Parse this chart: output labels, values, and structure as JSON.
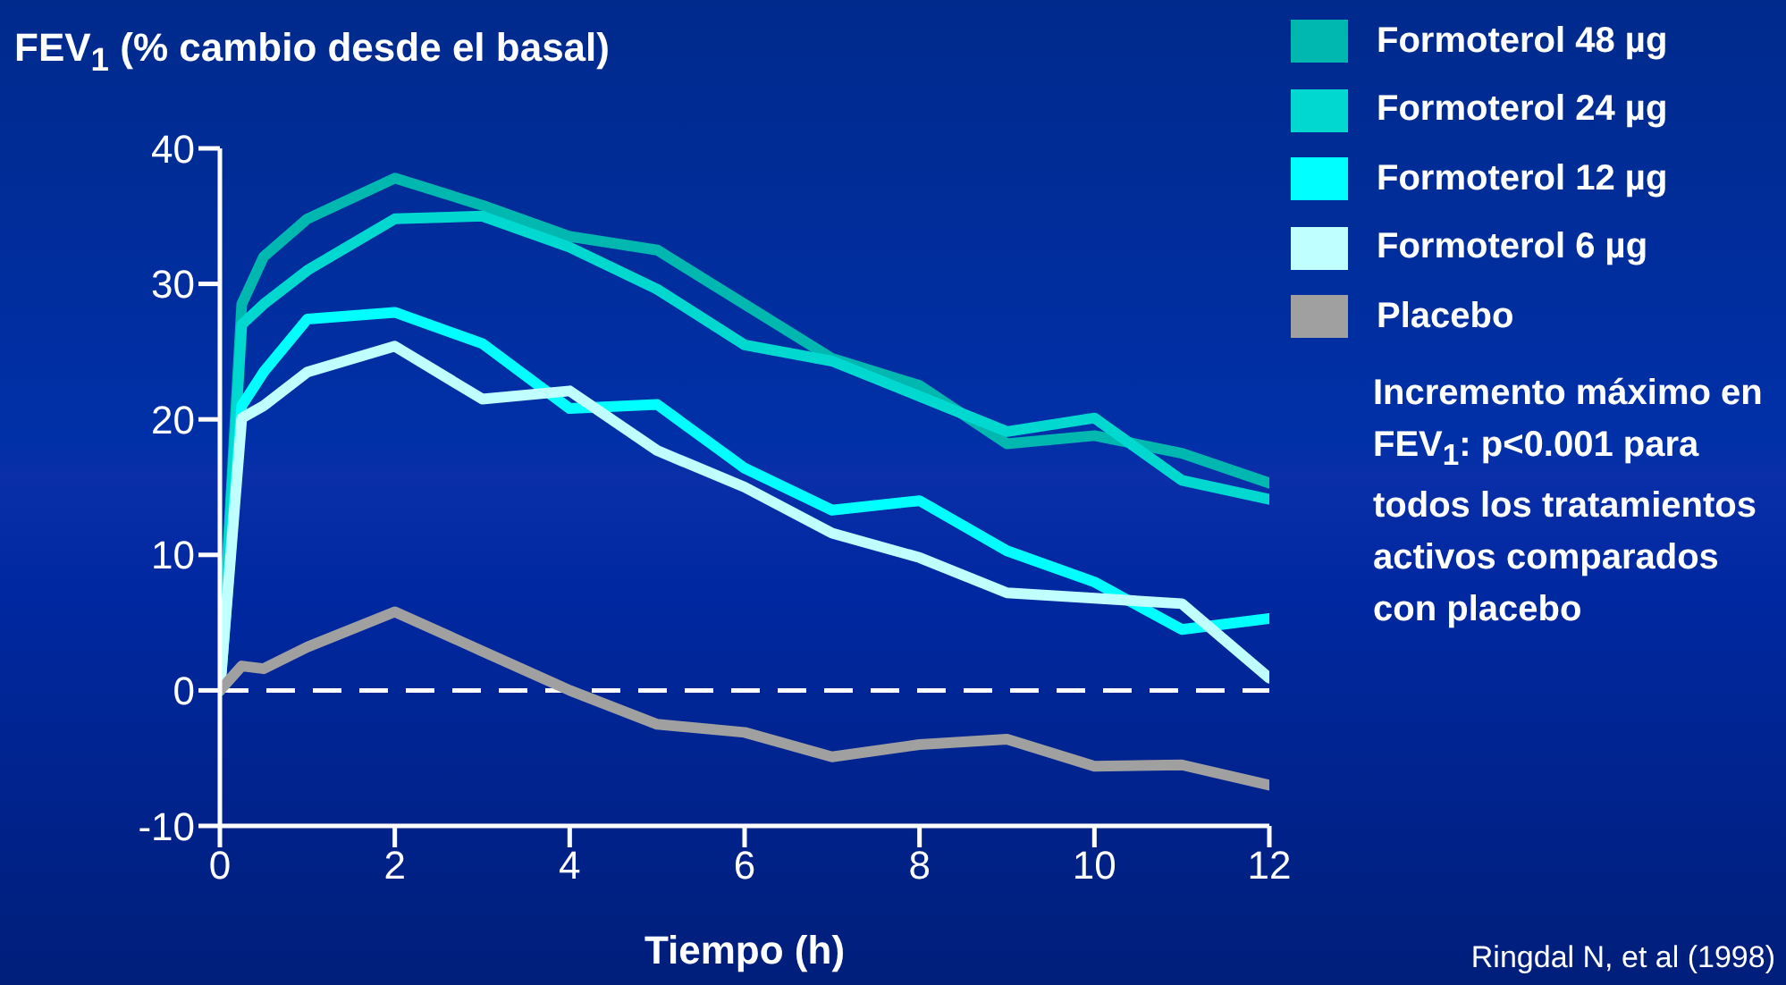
{
  "chart_data": {
    "type": "line",
    "ylabel": "FEV$_{1}$ (% cambio desde el basal)",
    "xlabel": "Tiempo (h)",
    "x": [
      0,
      0.25,
      0.5,
      1,
      2,
      3,
      4,
      5,
      6,
      7,
      8,
      9,
      10,
      11,
      12
    ],
    "series": [
      {
        "name": "Formoterol 48 µg",
        "color": "#00b8b0",
        "values": [
          0,
          28.5,
          32,
          34.8,
          37.8,
          35.8,
          33.5,
          32.5,
          28.5,
          24.5,
          22.5,
          18.2,
          18.8,
          17.5,
          15.3
        ]
      },
      {
        "name": "Formoterol 24 µg",
        "color": "#00d8d0",
        "values": [
          0,
          27,
          28.5,
          31,
          34.8,
          35,
          32.7,
          29.6,
          25.5,
          24.3,
          21.7,
          19.1,
          20.1,
          15.5,
          14.1
        ]
      },
      {
        "name": "Formoterol 12 µg",
        "color": "#00ffff",
        "values": [
          0,
          21,
          23.5,
          27.4,
          27.9,
          25.6,
          20.8,
          21.1,
          16.4,
          13.3,
          14,
          10.3,
          8,
          4.5,
          5.3
        ]
      },
      {
        "name": "Formoterol 6 µg",
        "color": "#c0ffff",
        "values": [
          0,
          20.1,
          21,
          23.5,
          25.4,
          21.5,
          22.1,
          17.7,
          15,
          11.6,
          9.8,
          7.2,
          6.8,
          6.4,
          0.9
        ]
      },
      {
        "name": "Placebo",
        "color": "#a0a0a0",
        "values": [
          0,
          1.8,
          1.6,
          3.2,
          5.8,
          2.9,
          0,
          -2.5,
          -3.1,
          -4.9,
          -4,
          -3.6,
          -5.6,
          -5.5,
          -7
        ]
      }
    ],
    "xlim": [
      0,
      12
    ],
    "xticks": [
      0,
      2,
      4,
      6,
      8,
      10,
      12
    ],
    "ylim": [
      -10,
      40
    ],
    "yticks": [
      -10,
      0,
      10,
      20,
      30,
      40
    ],
    "ref_lines": [
      {
        "axis": "y",
        "value": 0,
        "color": "#ffffff",
        "line_style": "dashed"
      }
    ],
    "annotations": [
      "Incremento máximo en FEV$_{1}$: p<0.001 para todos los tratamientos activos comparados con placebo",
      "Ringdal N, et al (1998)"
    ],
    "legend": "right",
    "marker": "none",
    "line_style": "solid",
    "grid": false
  }
}
